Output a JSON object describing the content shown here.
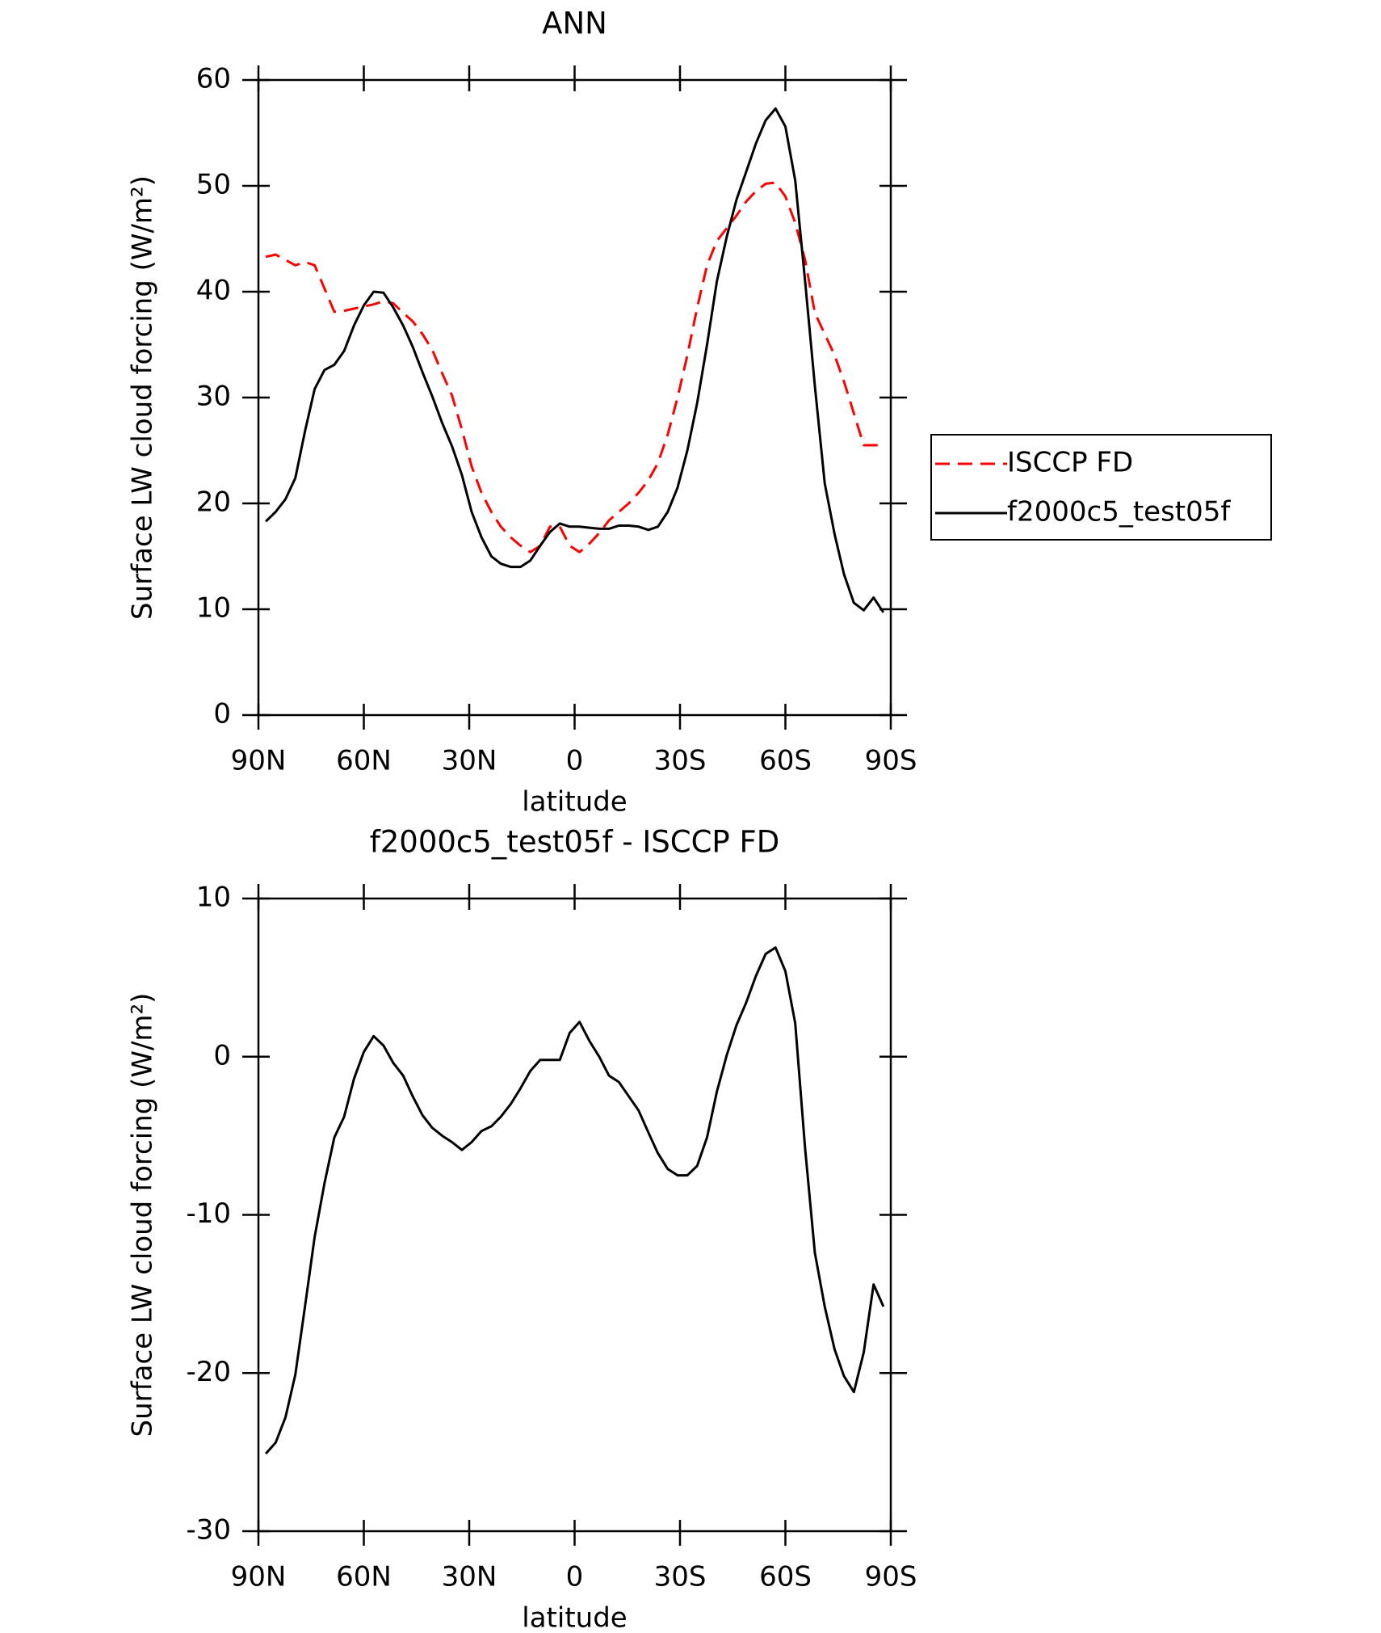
{
  "chart_data": [
    {
      "type": "line",
      "title": "ANN",
      "xlabel": "latitude",
      "ylabel": "Surface LW cloud forcing (W/m²)",
      "x": [
        87.9,
        85.1,
        82.3,
        79.5,
        76.7,
        74.0,
        71.2,
        68.4,
        65.6,
        62.8,
        60.0,
        57.2,
        54.4,
        51.6,
        48.8,
        46.1,
        43.3,
        40.5,
        37.7,
        34.9,
        32.1,
        29.3,
        26.5,
        23.7,
        21.0,
        18.2,
        15.4,
        12.6,
        9.8,
        7.0,
        4.2,
        1.4,
        -1.4,
        -4.2,
        -7.0,
        -9.8,
        -12.6,
        -15.4,
        -18.2,
        -21.0,
        -23.7,
        -26.5,
        -29.3,
        -32.1,
        -34.9,
        -37.7,
        -40.5,
        -43.3,
        -46.1,
        -48.8,
        -51.6,
        -54.4,
        -57.2,
        -60.0,
        -62.8,
        -65.6,
        -68.4,
        -71.2,
        -74.0,
        -76.7,
        -79.5,
        -82.3,
        -85.1,
        -87.9
      ],
      "xlim": [
        90,
        -90
      ],
      "xticks": [
        {
          "value": 90,
          "label": "90N"
        },
        {
          "value": 60,
          "label": "60N"
        },
        {
          "value": 30,
          "label": "30N"
        },
        0,
        {
          "value": -30,
          "label": "30S"
        },
        {
          "value": -60,
          "label": "60S"
        },
        {
          "value": -90,
          "label": "90S"
        }
      ],
      "ylim": [
        0,
        60
      ],
      "yticks": [
        0,
        10,
        20,
        30,
        40,
        50,
        60
      ],
      "legend": "right",
      "series": [
        {
          "name": "ISCCP FD",
          "color": "#ff0000",
          "dash": "dashed",
          "values": [
            43.3,
            43.5,
            43.0,
            42.5,
            42.8,
            42.5,
            40.3,
            38.1,
            38.2,
            38.4,
            38.6,
            38.8,
            39.1,
            38.9,
            38.0,
            37.2,
            36.0,
            34.5,
            32.3,
            30.2,
            27.0,
            23.5,
            21.0,
            19.2,
            17.8,
            16.8,
            16.0,
            15.4,
            16.0,
            17.8,
            17.8,
            16.0,
            15.4,
            16.2,
            17.2,
            18.4,
            19.2,
            20.0,
            21.0,
            22.2,
            23.8,
            26.5,
            30.0,
            34.0,
            38.5,
            42.5,
            44.8,
            46.0,
            47.2,
            48.5,
            49.5,
            50.2,
            50.3,
            49.0,
            46.5,
            43.0,
            38.0,
            36.0,
            34.0,
            31.5,
            28.5,
            25.5,
            25.5,
            25.5
          ]
        },
        {
          "name": "f2000c5_test05f",
          "color": "#000000",
          "dash": "solid",
          "values": [
            18.3,
            19.2,
            20.4,
            22.4,
            26.9,
            30.8,
            32.6,
            33.1,
            34.4,
            36.8,
            38.7,
            40.0,
            39.9,
            38.5,
            36.8,
            34.8,
            32.4,
            30.1,
            27.6,
            25.4,
            22.7,
            19.2,
            16.8,
            15.0,
            14.3,
            14.0,
            14.0,
            14.6,
            16.0,
            17.3,
            18.1,
            17.8,
            17.8,
            17.7,
            17.6,
            17.6,
            17.9,
            17.9,
            17.8,
            17.5,
            17.8,
            19.2,
            21.5,
            25.0,
            29.5,
            35.0,
            41.0,
            45.2,
            48.7,
            51.3,
            54.0,
            56.2,
            57.3,
            55.6,
            50.5,
            41.0,
            31.1,
            21.9,
            17.1,
            13.3,
            10.6,
            9.9,
            11.1,
            9.7
          ]
        }
      ]
    },
    {
      "type": "line",
      "title": "f2000c5_test05f - ISCCP FD",
      "xlabel": "latitude",
      "ylabel": "Surface LW cloud forcing (W/m²)",
      "x": [
        87.9,
        85.1,
        82.3,
        79.5,
        76.7,
        74.0,
        71.2,
        68.4,
        65.6,
        62.8,
        60.0,
        57.2,
        54.4,
        51.6,
        48.8,
        46.1,
        43.3,
        40.5,
        37.7,
        34.9,
        32.1,
        29.3,
        26.5,
        23.7,
        21.0,
        18.2,
        15.4,
        12.6,
        9.8,
        7.0,
        4.2,
        1.4,
        -1.4,
        -4.2,
        -7.0,
        -9.8,
        -12.6,
        -15.4,
        -18.2,
        -21.0,
        -23.7,
        -26.5,
        -29.3,
        -32.1,
        -34.9,
        -37.7,
        -40.5,
        -43.3,
        -46.1,
        -48.8,
        -51.6,
        -54.4,
        -57.2,
        -60.0,
        -62.8,
        -65.6,
        -68.4,
        -71.2,
        -74.0,
        -76.7,
        -79.5,
        -82.3,
        -85.1,
        -87.9
      ],
      "xlim": [
        90,
        -90
      ],
      "xticks": [
        {
          "value": 90,
          "label": "90N"
        },
        {
          "value": 60,
          "label": "60N"
        },
        {
          "value": 30,
          "label": "30N"
        },
        0,
        {
          "value": -30,
          "label": "30S"
        },
        {
          "value": -60,
          "label": "60S"
        },
        {
          "value": -90,
          "label": "90S"
        }
      ],
      "ylim": [
        -30,
        10
      ],
      "yticks": [
        -30,
        -20,
        -10,
        0,
        10
      ],
      "series": [
        {
          "color": "#000000",
          "dash": "solid",
          "values": [
            -25.1,
            -24.4,
            -22.8,
            -20.1,
            -15.7,
            -11.4,
            -8.0,
            -5.1,
            -3.8,
            -1.4,
            0.3,
            1.3,
            0.7,
            -0.4,
            -1.2,
            -2.5,
            -3.7,
            -4.5,
            -5.0,
            -5.4,
            -5.9,
            -5.4,
            -4.7,
            -4.4,
            -3.8,
            -3.0,
            -2.0,
            -0.9,
            -0.2,
            -0.2,
            -0.2,
            1.5,
            2.2,
            1.0,
            0.0,
            -1.2,
            -1.6,
            -2.5,
            -3.4,
            -4.8,
            -6.1,
            -7.1,
            -7.5,
            -7.5,
            -6.9,
            -5.1,
            -2.2,
            0.1,
            2.0,
            3.4,
            5.1,
            6.5,
            6.9,
            5.4,
            2.1,
            -5.8,
            -12.4,
            -15.8,
            -18.5,
            -20.2,
            -21.2,
            -18.7,
            -14.4,
            -15.8
          ]
        }
      ]
    }
  ]
}
